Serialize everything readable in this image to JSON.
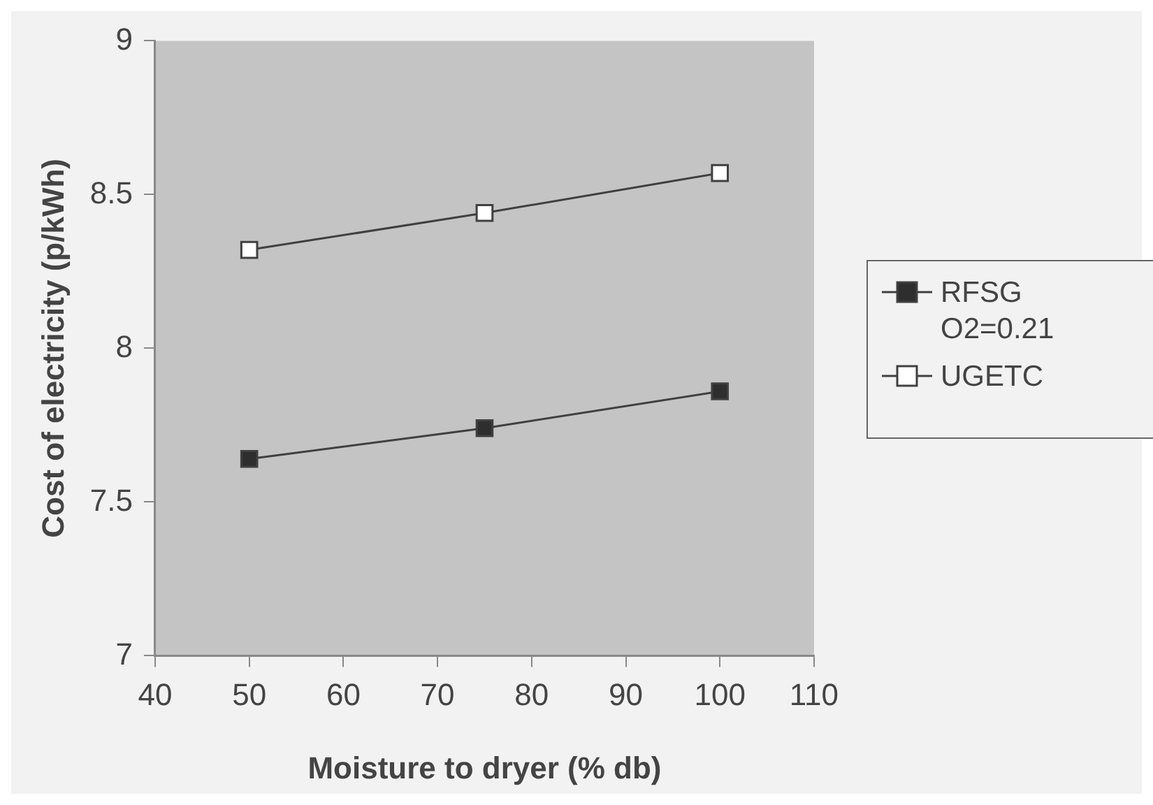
{
  "chart_data": {
    "type": "line",
    "xlabel": "Moisture to dryer (% db)",
    "ylabel": "Cost of electricity (p/kWh)",
    "x": [
      50,
      75,
      100
    ],
    "series": [
      {
        "name": "RFSG O2=0.21",
        "color": "#2e2e2e",
        "values": [
          7.64,
          7.74,
          7.86
        ]
      },
      {
        "name": "UGETC",
        "color": "#ffffff",
        "values": [
          8.32,
          8.44,
          8.57
        ]
      }
    ],
    "xlim": [
      40,
      110
    ],
    "xticks": [
      40,
      50,
      60,
      70,
      80,
      90,
      100,
      110
    ],
    "ylim": [
      7,
      9
    ],
    "yticks": [
      7,
      7.5,
      8,
      8.5,
      9
    ],
    "grid": false,
    "legend": "right",
    "marker": "square",
    "line_style": "solid"
  }
}
